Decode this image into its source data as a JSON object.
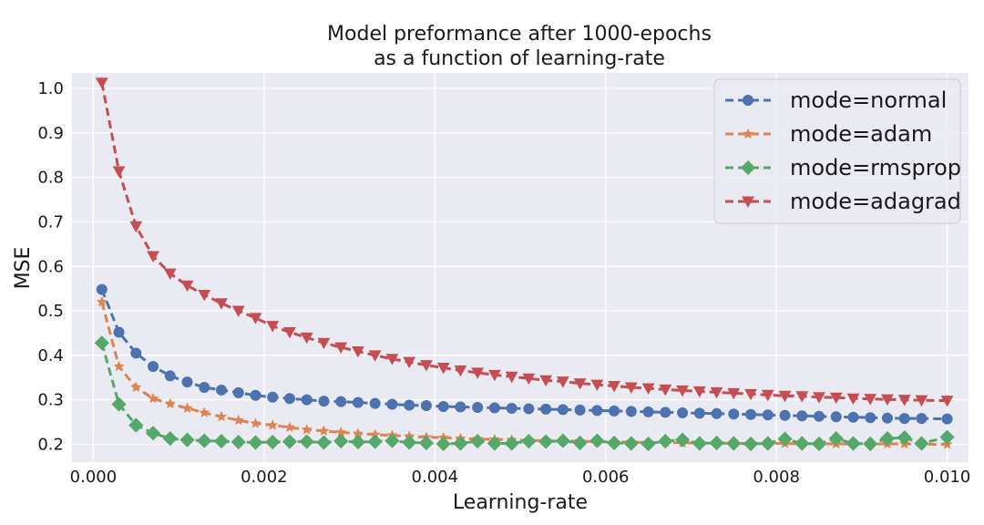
{
  "chart_data": {
    "type": "line",
    "title_line1": "Model preformance after 1000-epochs",
    "title_line2": "as a function of learning-rate",
    "xlabel": "Learning-rate",
    "ylabel": "MSE",
    "xlim": [
      -0.00025,
      0.01025
    ],
    "ylim": [
      0.16,
      1.035
    ],
    "xticks": [
      "0.000",
      "0.002",
      "0.004",
      "0.006",
      "0.008",
      "0.010"
    ],
    "yticks": [
      "0.2",
      "0.3",
      "0.4",
      "0.5",
      "0.6",
      "0.7",
      "0.8",
      "0.9",
      "1.0"
    ],
    "grid": true,
    "legend_position": "top-right",
    "x": [
      0.0001,
      0.0003,
      0.0005,
      0.0007,
      0.0009,
      0.0011,
      0.0013,
      0.0015,
      0.0017,
      0.0019,
      0.0021,
      0.0023,
      0.0025,
      0.0027,
      0.0029,
      0.0031,
      0.0033,
      0.0035,
      0.0037,
      0.0039,
      0.0041,
      0.0043,
      0.0045,
      0.0047,
      0.0049,
      0.0051,
      0.0053,
      0.0055,
      0.0057,
      0.0059,
      0.0061,
      0.0063,
      0.0065,
      0.0067,
      0.0069,
      0.0071,
      0.0073,
      0.0075,
      0.0077,
      0.0079,
      0.0081,
      0.0083,
      0.0085,
      0.0087,
      0.0089,
      0.0091,
      0.0093,
      0.0095,
      0.0097,
      0.01
    ],
    "series": [
      {
        "name": "mode=normal",
        "color": "#4C72B0",
        "marker": "circle",
        "values": [
          0.548,
          0.452,
          0.405,
          0.375,
          0.354,
          0.34,
          0.328,
          0.322,
          0.316,
          0.31,
          0.306,
          0.303,
          0.3,
          0.297,
          0.296,
          0.294,
          0.292,
          0.29,
          0.288,
          0.287,
          0.285,
          0.284,
          0.283,
          0.282,
          0.281,
          0.28,
          0.279,
          0.278,
          0.277,
          0.276,
          0.275,
          0.274,
          0.273,
          0.272,
          0.271,
          0.27,
          0.269,
          0.268,
          0.267,
          0.266,
          0.265,
          0.264,
          0.263,
          0.262,
          0.261,
          0.26,
          0.259,
          0.258,
          0.258,
          0.257
        ]
      },
      {
        "name": "mode=adam",
        "color": "#DD8452",
        "marker": "star",
        "values": [
          0.52,
          0.375,
          0.328,
          0.303,
          0.291,
          0.281,
          0.271,
          0.262,
          0.254,
          0.247,
          0.243,
          0.238,
          0.233,
          0.23,
          0.227,
          0.224,
          0.222,
          0.22,
          0.218,
          0.216,
          0.215,
          0.213,
          0.212,
          0.211,
          0.21,
          0.209,
          0.208,
          0.207,
          0.207,
          0.206,
          0.205,
          0.205,
          0.204,
          0.204,
          0.203,
          0.203,
          0.203,
          0.202,
          0.202,
          0.202,
          0.202,
          0.201,
          0.201,
          0.201,
          0.201,
          0.201,
          0.201,
          0.201,
          0.2,
          0.2
        ]
      },
      {
        "name": "mode=rmsprop",
        "color": "#55A868",
        "marker": "diamond",
        "values": [
          0.428,
          0.29,
          0.243,
          0.225,
          0.213,
          0.21,
          0.208,
          0.207,
          0.205,
          0.204,
          0.205,
          0.206,
          0.206,
          0.204,
          0.207,
          0.205,
          0.206,
          0.208,
          0.204,
          0.203,
          0.201,
          0.202,
          0.207,
          0.202,
          0.202,
          0.207,
          0.206,
          0.208,
          0.203,
          0.208,
          0.203,
          0.202,
          0.201,
          0.207,
          0.21,
          0.202,
          0.203,
          0.202,
          0.201,
          0.202,
          0.212,
          0.202,
          0.201,
          0.213,
          0.202,
          0.201,
          0.213,
          0.215,
          0.202,
          0.216
        ]
      },
      {
        "name": "mode=adagrad",
        "color": "#C44E52",
        "marker": "triangle-down",
        "values": [
          1.013,
          0.814,
          0.69,
          0.623,
          0.584,
          0.557,
          0.536,
          0.517,
          0.5,
          0.484,
          0.466,
          0.452,
          0.44,
          0.428,
          0.418,
          0.409,
          0.4,
          0.392,
          0.385,
          0.378,
          0.372,
          0.366,
          0.361,
          0.356,
          0.352,
          0.348,
          0.344,
          0.341,
          0.337,
          0.334,
          0.331,
          0.328,
          0.326,
          0.323,
          0.321,
          0.319,
          0.317,
          0.315,
          0.313,
          0.311,
          0.309,
          0.308,
          0.306,
          0.305,
          0.303,
          0.302,
          0.301,
          0.3,
          0.299,
          0.298
        ]
      }
    ]
  }
}
